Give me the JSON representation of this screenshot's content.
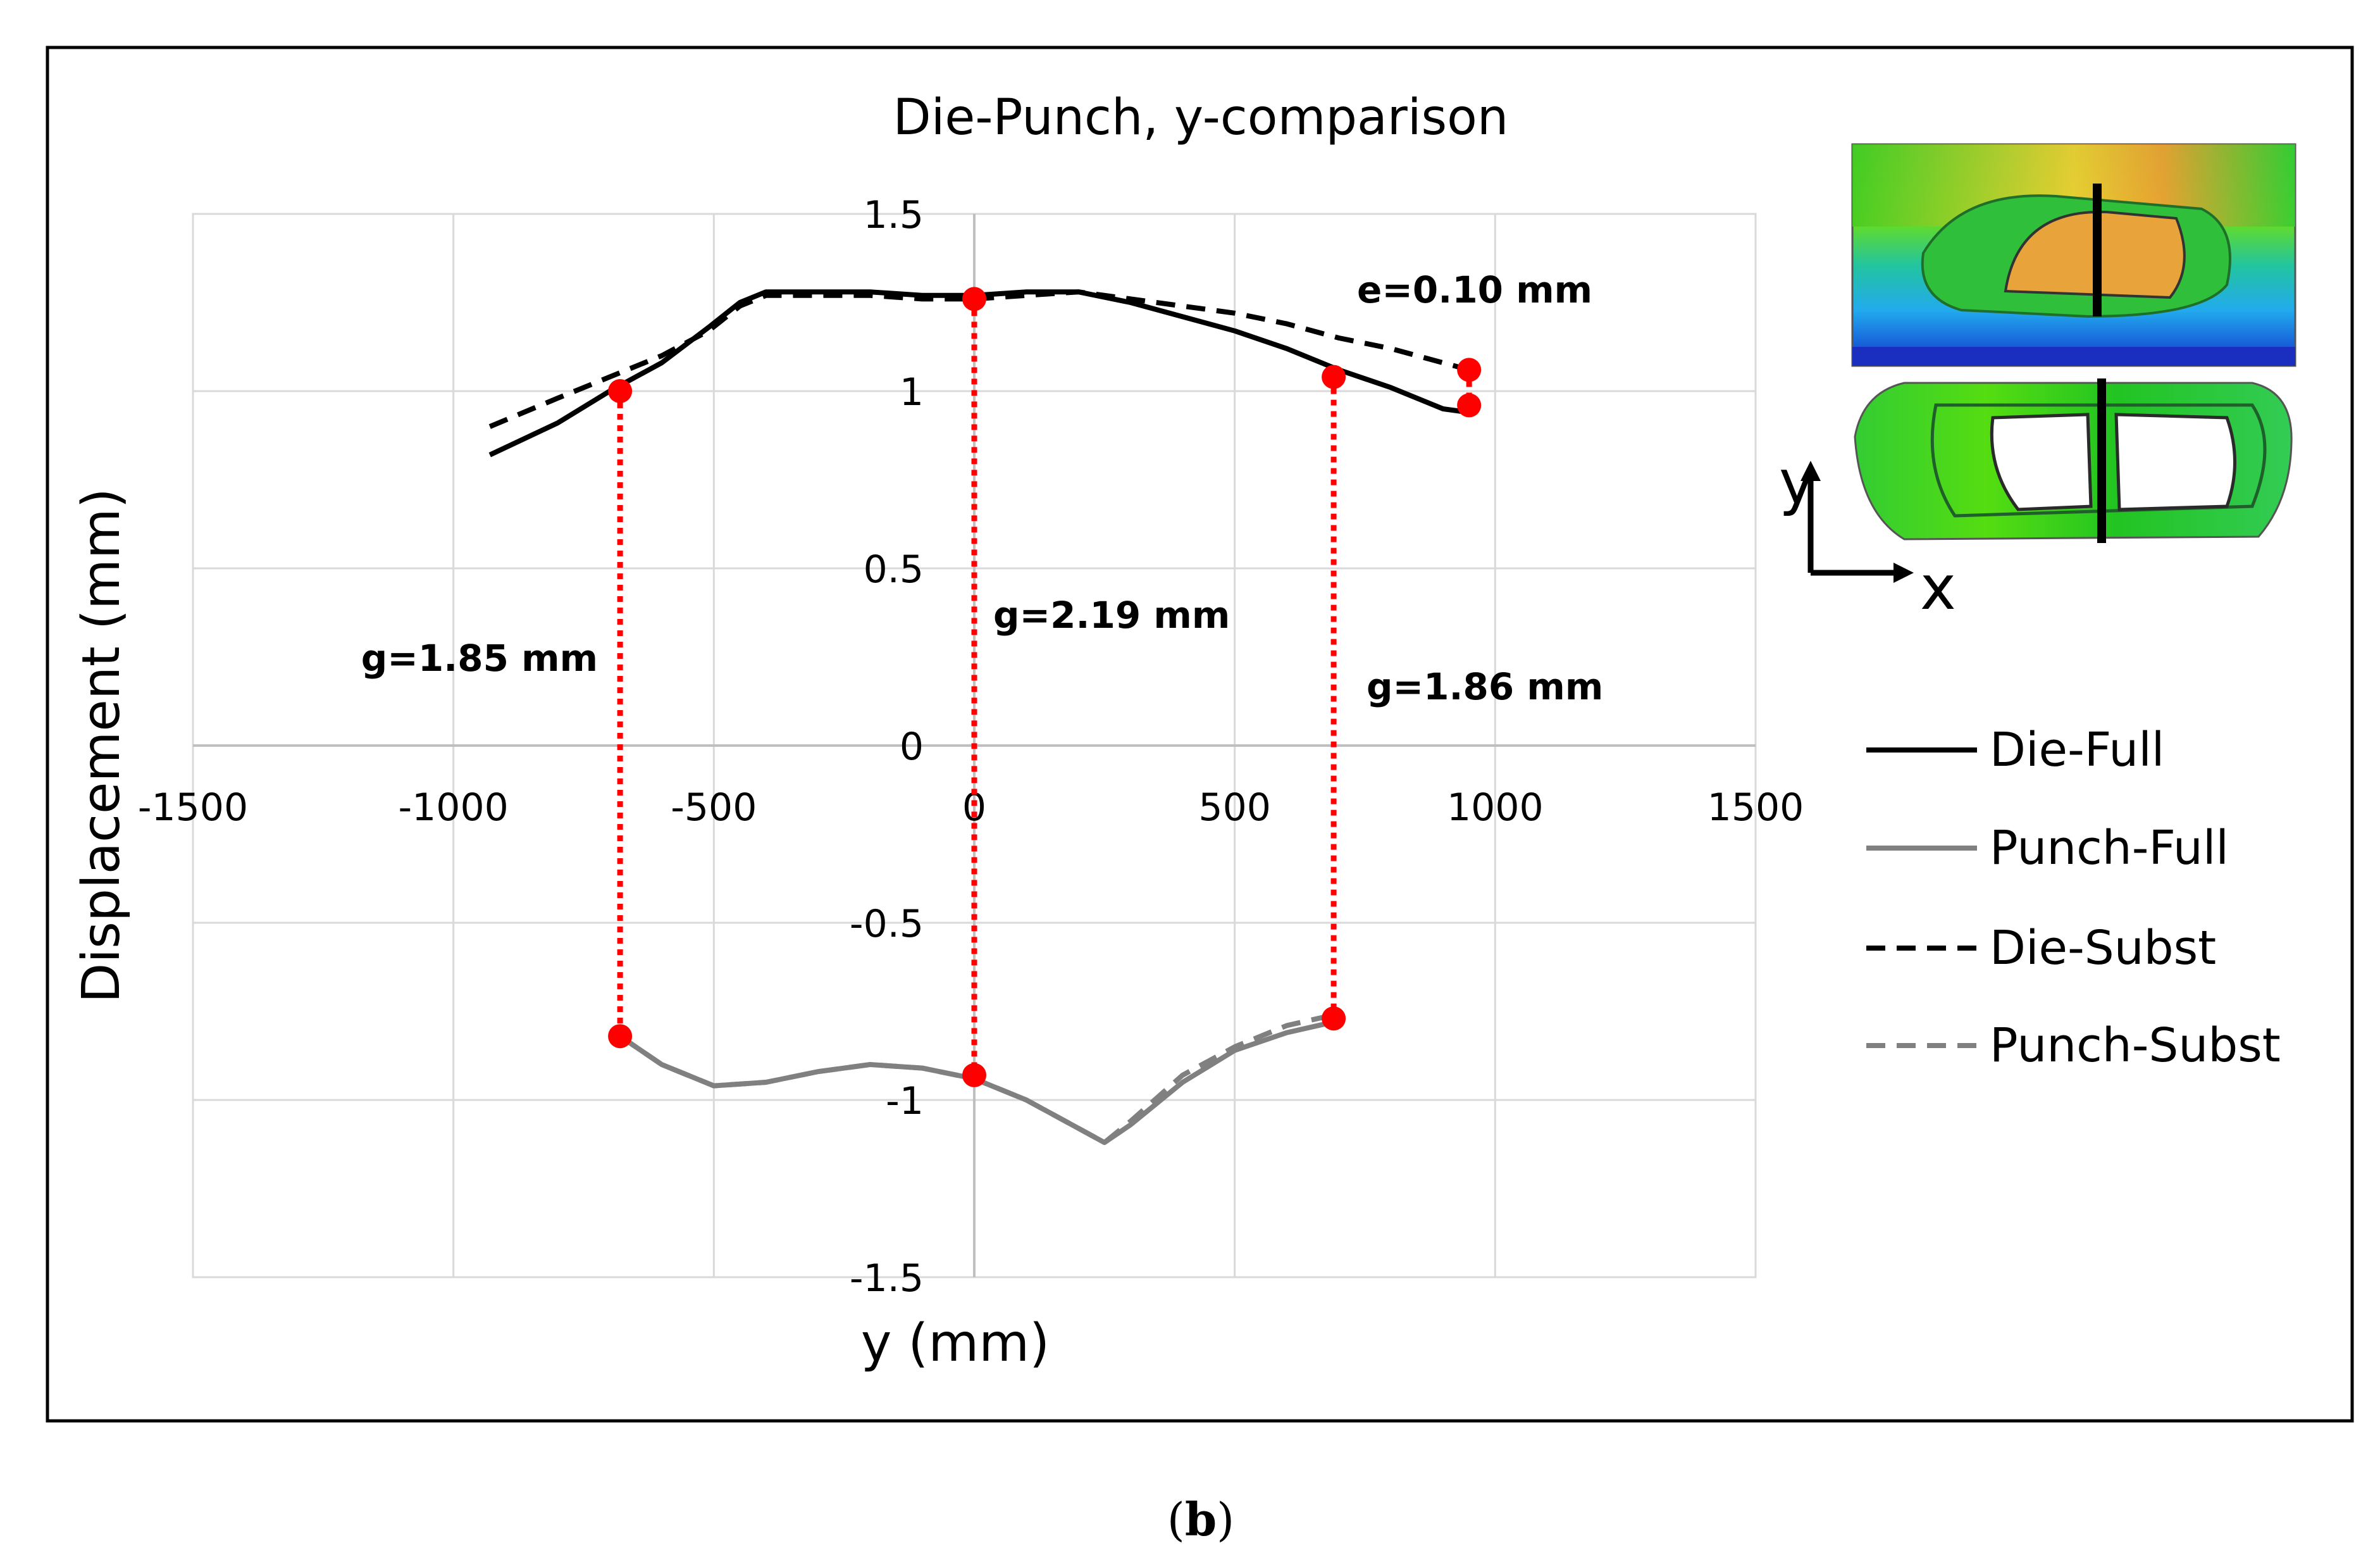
{
  "chart_data": {
    "type": "line",
    "title": "Die-Punch, y-comparison",
    "xlabel": "y (mm)",
    "ylabel": "Displacement  (mm)",
    "xlim": [
      -1500,
      1500
    ],
    "ylim": [
      -1.5,
      1.5
    ],
    "xticks": [
      -1500,
      -1000,
      -500,
      0,
      500,
      1000,
      1500
    ],
    "yticks": [
      1.5,
      1,
      0.5,
      0,
      -0.5,
      -1,
      -1.5
    ],
    "xtick_labels": [
      "-1500",
      "-1000",
      "-500",
      "0",
      "500",
      "1000",
      "1500"
    ],
    "ytick_labels": [
      "1.5",
      "1",
      "0.5",
      "0",
      "-0.5",
      "-1",
      "-1.5"
    ],
    "grid": true,
    "legend_position": "right",
    "series": [
      {
        "name": "Die-Full",
        "color": "#000000",
        "dash": "solid",
        "x": [
          -930,
          -800,
          -700,
          -600,
          -510,
          -450,
          -400,
          -300,
          -200,
          -100,
          0,
          100,
          200,
          300,
          400,
          500,
          600,
          700,
          800,
          900,
          950
        ],
        "y": [
          0.82,
          0.91,
          1.0,
          1.08,
          1.18,
          1.25,
          1.28,
          1.28,
          1.28,
          1.27,
          1.27,
          1.28,
          1.28,
          1.25,
          1.21,
          1.17,
          1.12,
          1.06,
          1.01,
          0.95,
          0.94
        ]
      },
      {
        "name": "Punch-Full",
        "color": "#808080",
        "dash": "solid",
        "x": [
          -680,
          -600,
          -500,
          -400,
          -300,
          -200,
          -100,
          0,
          100,
          200,
          250,
          300,
          400,
          500,
          600,
          690
        ],
        "y": [
          -0.82,
          -0.9,
          -0.96,
          -0.95,
          -0.92,
          -0.9,
          -0.91,
          -0.94,
          -1.0,
          -1.08,
          -1.12,
          -1.07,
          -0.95,
          -0.86,
          -0.81,
          -0.78
        ]
      },
      {
        "name": "Die-Subst",
        "color": "#000000",
        "dash": "dashed",
        "x": [
          -930,
          -800,
          -700,
          -600,
          -510,
          -450,
          -400,
          -300,
          -200,
          -100,
          0,
          100,
          200,
          300,
          400,
          500,
          600,
          700,
          800,
          900,
          950
        ],
        "y": [
          0.9,
          0.98,
          1.04,
          1.1,
          1.17,
          1.24,
          1.27,
          1.27,
          1.27,
          1.26,
          1.26,
          1.27,
          1.28,
          1.26,
          1.24,
          1.22,
          1.19,
          1.15,
          1.12,
          1.08,
          1.06
        ]
      },
      {
        "name": "Punch-Subst",
        "color": "#808080",
        "dash": "dashed",
        "x": [
          -680,
          -600,
          -500,
          -400,
          -300,
          -200,
          -100,
          0,
          100,
          200,
          250,
          300,
          400,
          500,
          600,
          690
        ],
        "y": [
          -0.82,
          -0.9,
          -0.96,
          -0.95,
          -0.92,
          -0.9,
          -0.91,
          -0.94,
          -1.0,
          -1.08,
          -1.12,
          -1.06,
          -0.93,
          -0.85,
          -0.79,
          -0.76
        ]
      }
    ],
    "gap_markers": [
      {
        "x": -680,
        "y_top": 1.0,
        "y_bottom": -0.82
      },
      {
        "x": 0,
        "y_top": 1.26,
        "y_bottom": -0.93
      },
      {
        "x": 690,
        "y_top": 1.04,
        "y_bottom": -0.77
      },
      {
        "x": 950,
        "y_top": 1.06,
        "y_bottom": 0.96
      }
    ],
    "annotations": [
      "g=1.85 mm",
      "g=2.19 mm",
      "g=1.86 mm",
      "e=0.10 mm"
    ],
    "marker_color": "#ff0000"
  },
  "inset": {
    "y_axis_label": "y",
    "x_axis_label": "x"
  },
  "caption": {
    "open": "(",
    "letter": "b",
    "close": ")"
  }
}
